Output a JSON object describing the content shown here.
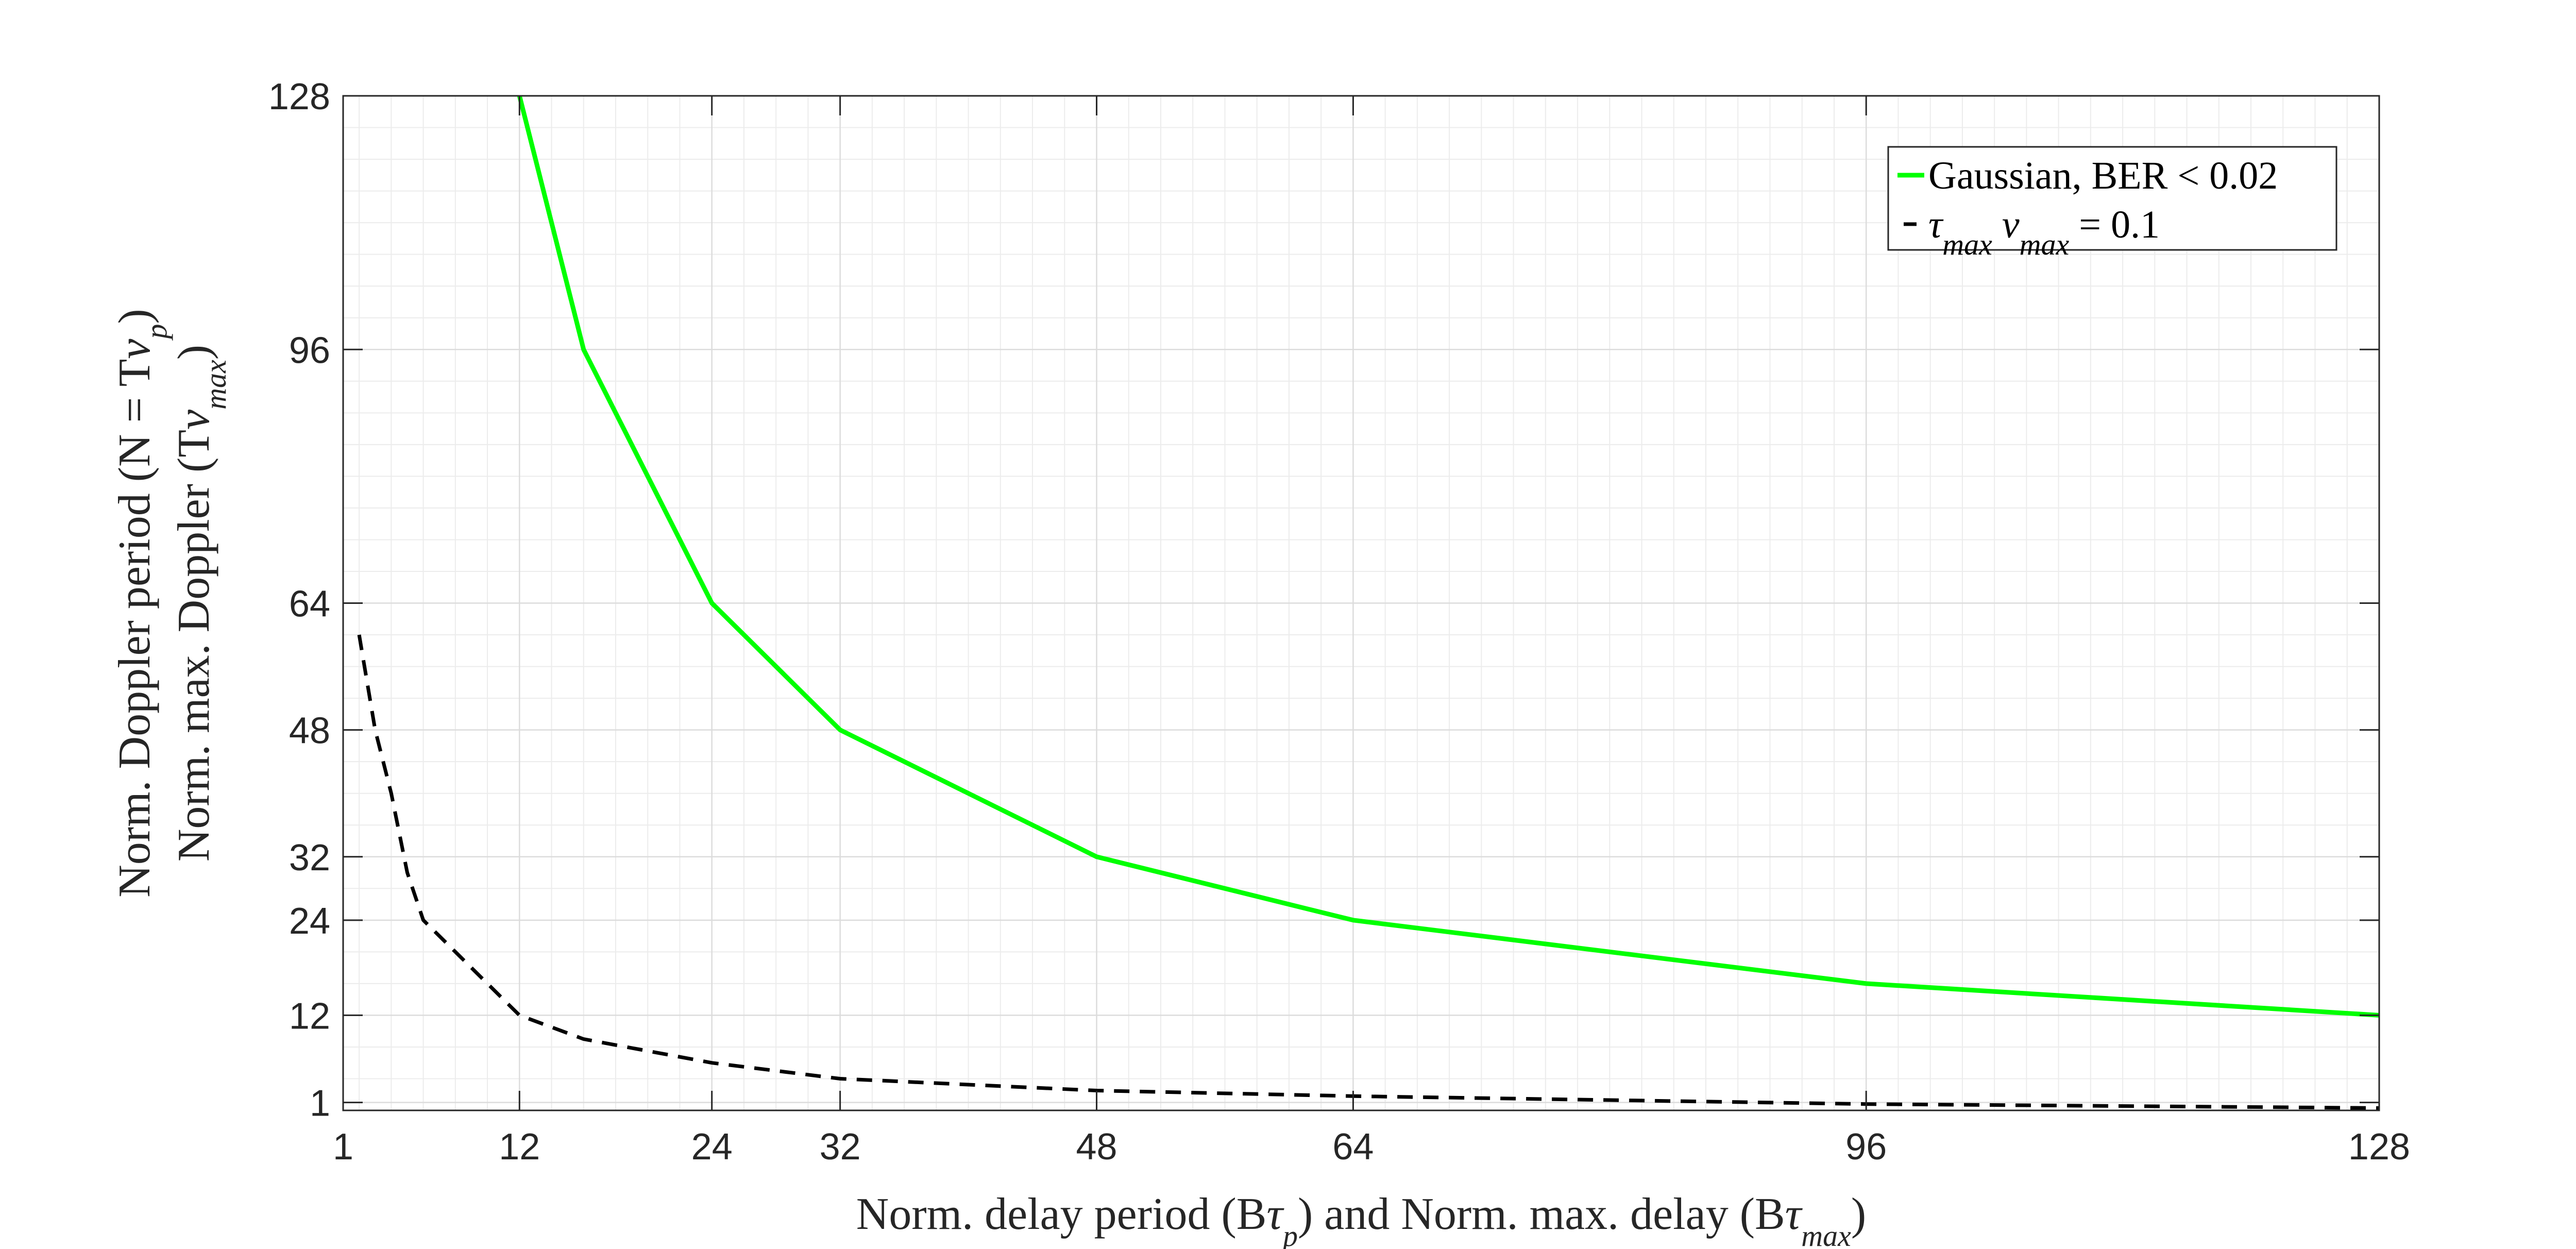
{
  "chart_data": {
    "type": "line",
    "xlabel": "Norm. delay period (Bτ_p) and Norm. max. delay (Bτ_max)",
    "ylabel_line1": "Norm. Doppler period (N = Tν_p)",
    "ylabel_line2": "Norm. max. Doppler (Tν_max)",
    "xlim": [
      1,
      128
    ],
    "ylim": [
      0,
      128
    ],
    "xticks": [
      1,
      12,
      24,
      32,
      48,
      64,
      96,
      128
    ],
    "yticks": [
      1,
      12,
      24,
      32,
      48,
      64,
      96,
      128
    ],
    "grid": true,
    "minor_grid": true,
    "legend_position": "top-right",
    "series": [
      {
        "name": "Gaussian, BER < 0.02",
        "color": "#00ff00",
        "style": "solid",
        "x": [
          12,
          16,
          24,
          32,
          48,
          64,
          96,
          128
        ],
        "y": [
          128,
          96,
          64,
          48,
          32,
          24,
          16,
          12
        ]
      },
      {
        "name": "τ_max ν_max = 0.1",
        "color": "#000000",
        "style": "dashed",
        "x": [
          2,
          3,
          4,
          5,
          6,
          8,
          12,
          16,
          24,
          32,
          48,
          64,
          96,
          128
        ],
        "y": [
          60,
          48,
          40,
          30,
          24,
          20,
          12,
          9,
          6,
          4,
          2.5,
          1.8,
          0.8,
          0.3
        ]
      }
    ]
  }
}
